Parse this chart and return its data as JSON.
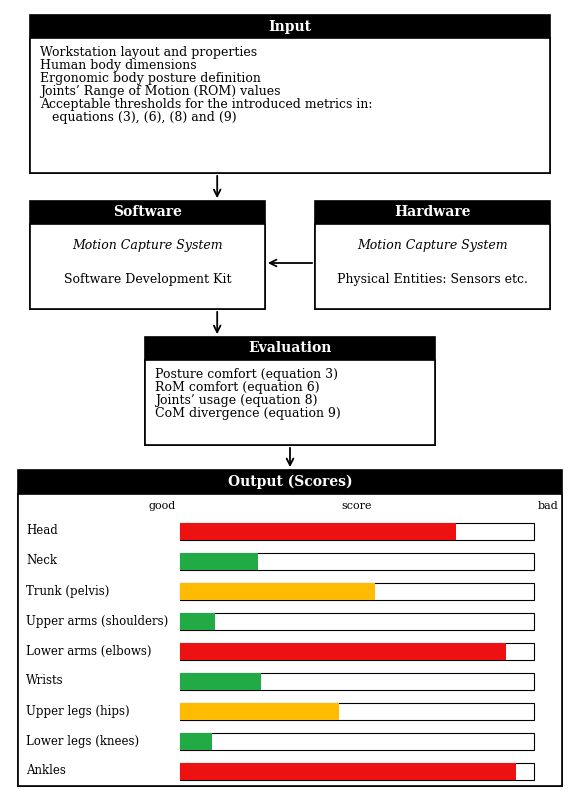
{
  "input_box": {
    "title": "Input",
    "lines": [
      "Workstation layout and properties",
      "Human body dimensions",
      "Ergonomic body posture definition",
      "Joints’ Range of Motion (ROM) values",
      "Acceptable thresholds for the introduced metrics in:",
      "   equations (3), (6), (8) and (9)"
    ]
  },
  "software_box": {
    "title": "Software",
    "line1": "Motion Capture System",
    "line2": "Software Development Kit"
  },
  "hardware_box": {
    "title": "Hardware",
    "line1": "Motion Capture System",
    "line2": "Physical Entities: Sensors etc."
  },
  "evaluation_box": {
    "title": "Evaluation",
    "lines": [
      "Posture comfort (equation 3)",
      "RoM comfort (equation 6)",
      "Joints’ usage (equation 8)",
      "CoM divergence (equation 9)"
    ]
  },
  "output_box": {
    "title": "Output (Scores)",
    "score_label": "score",
    "good_label": "good",
    "bad_label": "bad",
    "bars": [
      {
        "label": "Head",
        "value": 0.78,
        "color": "#ee1111"
      },
      {
        "label": "Neck",
        "value": 0.22,
        "color": "#22aa44"
      },
      {
        "label": "Trunk (pelvis)",
        "value": 0.55,
        "color": "#ffbb00"
      },
      {
        "label": "Upper arms (shoulders)",
        "value": 0.1,
        "color": "#22aa44"
      },
      {
        "label": "Lower arms (elbows)",
        "value": 0.92,
        "color": "#ee1111"
      },
      {
        "label": "Wrists",
        "value": 0.23,
        "color": "#22aa44"
      },
      {
        "label": "Upper legs (hips)",
        "value": 0.45,
        "color": "#ffbb00"
      },
      {
        "label": "Lower legs (knees)",
        "value": 0.09,
        "color": "#22aa44"
      },
      {
        "label": "Ankles",
        "value": 0.95,
        "color": "#ee1111"
      }
    ]
  }
}
